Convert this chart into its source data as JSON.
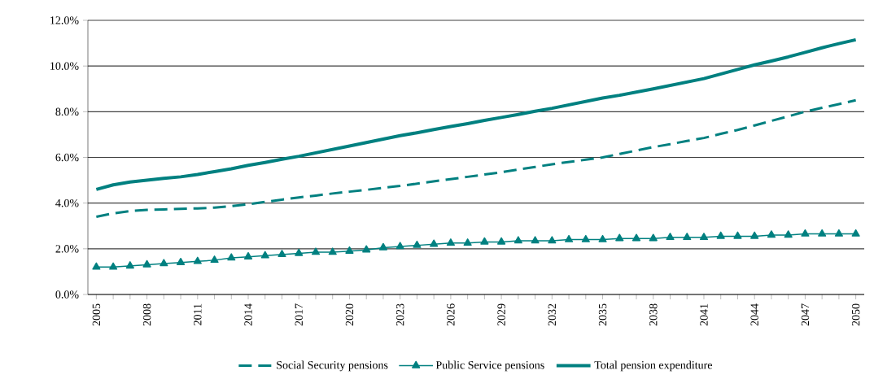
{
  "chart_data": {
    "type": "line",
    "categories": [
      "2005",
      null,
      null,
      "2008",
      null,
      null,
      "2011",
      null,
      null,
      "2014",
      null,
      null,
      "2017",
      null,
      null,
      "2020",
      null,
      null,
      "2023",
      null,
      null,
      "2026",
      null,
      null,
      "2029",
      null,
      null,
      "2032",
      null,
      null,
      "2035",
      null,
      null,
      "2038",
      null,
      null,
      "2041",
      null,
      null,
      "2044",
      null,
      null,
      "2047",
      null,
      null,
      "2050"
    ],
    "series": [
      {
        "name": "Social Security pensions",
        "color": "#008080",
        "line_style": "dashed",
        "marker": "none",
        "values": [
          3.4,
          3.55,
          3.65,
          3.7,
          3.72,
          3.75,
          3.77,
          3.8,
          3.87,
          3.95,
          4.05,
          4.15,
          4.25,
          4.33,
          4.42,
          4.5,
          4.58,
          4.67,
          4.75,
          4.85,
          4.95,
          5.05,
          5.15,
          5.25,
          5.35,
          5.47,
          5.58,
          5.7,
          5.8,
          5.9,
          6.0,
          6.15,
          6.3,
          6.45,
          6.58,
          6.72,
          6.85,
          7.03,
          7.2,
          7.4,
          7.6,
          7.8,
          8.0,
          8.17,
          8.33,
          8.5
        ]
      },
      {
        "name": "Public Service pensions",
        "color": "#008080",
        "line_style": "solid",
        "marker": "triangle",
        "values": [
          1.2,
          1.2,
          1.25,
          1.3,
          1.35,
          1.4,
          1.45,
          1.5,
          1.6,
          1.65,
          1.7,
          1.75,
          1.8,
          1.85,
          1.85,
          1.9,
          1.95,
          2.05,
          2.1,
          2.15,
          2.2,
          2.25,
          2.25,
          2.3,
          2.3,
          2.35,
          2.35,
          2.35,
          2.4,
          2.4,
          2.4,
          2.45,
          2.45,
          2.45,
          2.5,
          2.5,
          2.5,
          2.55,
          2.55,
          2.55,
          2.6,
          2.6,
          2.65,
          2.65,
          2.65,
          2.65
        ]
      },
      {
        "name": "Total pension expenditure",
        "color": "#008080",
        "line_style": "solid",
        "marker": "none",
        "values": [
          4.6,
          4.8,
          4.92,
          5.0,
          5.08,
          5.15,
          5.25,
          5.38,
          5.5,
          5.65,
          5.78,
          5.92,
          6.05,
          6.2,
          6.35,
          6.5,
          6.65,
          6.8,
          6.95,
          7.08,
          7.22,
          7.35,
          7.48,
          7.62,
          7.75,
          7.88,
          8.02,
          8.15,
          8.3,
          8.45,
          8.6,
          8.72,
          8.86,
          9.0,
          9.15,
          9.3,
          9.45,
          9.65,
          9.85,
          10.05,
          10.22,
          10.4,
          10.6,
          10.8,
          10.98,
          11.15
        ]
      }
    ],
    "ylim": [
      0,
      12
    ],
    "yticks": [
      {
        "value": 0,
        "label": "0.0%"
      },
      {
        "value": 2,
        "label": "2.0%"
      },
      {
        "value": 4,
        "label": "4.0%"
      },
      {
        "value": 6,
        "label": "6.0%"
      },
      {
        "value": 8,
        "label": "8.0%"
      },
      {
        "value": 10,
        "label": "10.0%"
      },
      {
        "value": 12,
        "label": "12.0%"
      }
    ],
    "grid": "y",
    "legend": "bottom"
  }
}
